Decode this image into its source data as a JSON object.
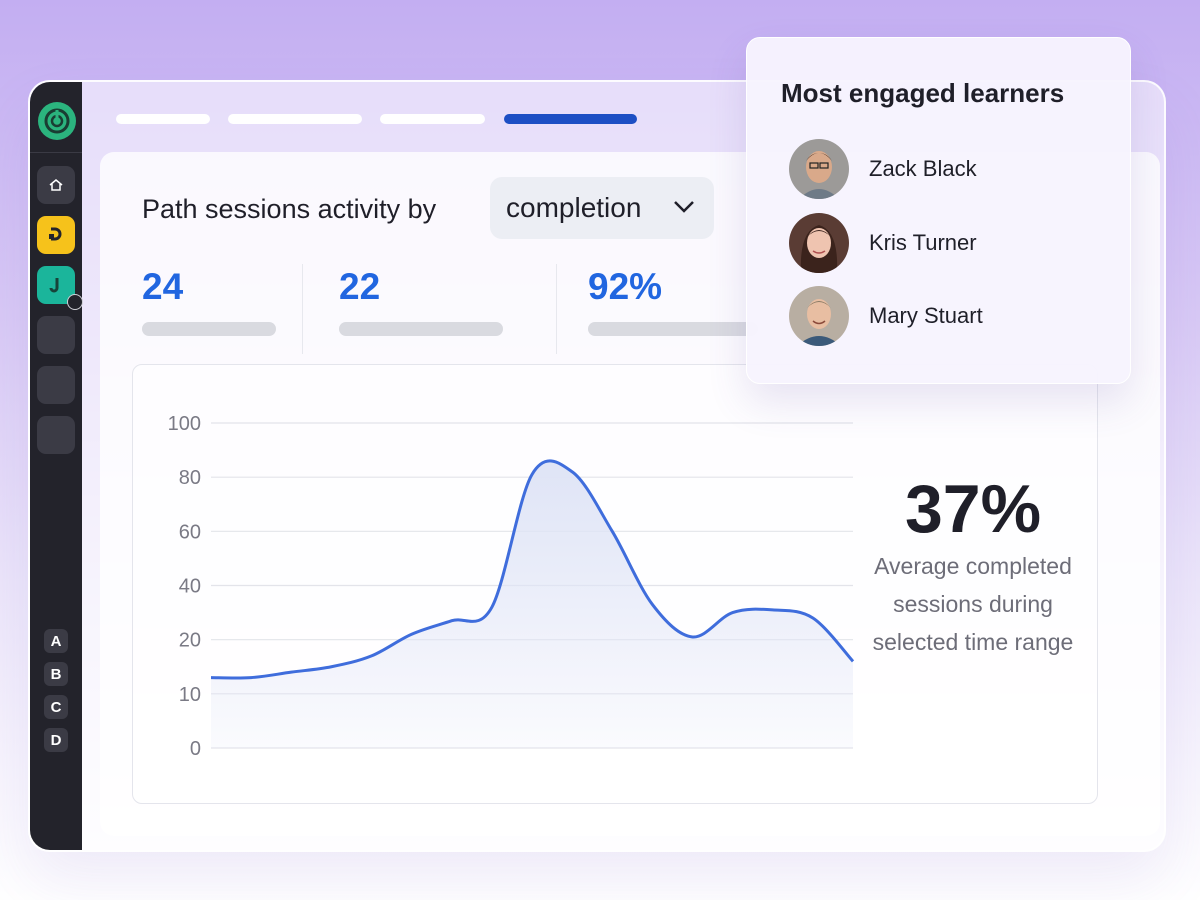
{
  "app": {
    "accent_color": "#1d4fc4",
    "brand_color": "#2bb47e"
  },
  "sidebar": {
    "logo_icon": "learning-circle-logo",
    "items": [
      {
        "icon": "home-icon"
      },
      {
        "icon": "path-icon",
        "color": "#f6c21b"
      },
      {
        "icon": "journey-icon",
        "color": "#1bb59b",
        "badge": "clock-icon"
      },
      {
        "icon": "placeholder"
      },
      {
        "icon": "placeholder"
      },
      {
        "icon": "placeholder"
      }
    ],
    "letters": [
      "A",
      "B",
      "C",
      "D"
    ]
  },
  "top_tabs": {
    "count": 4,
    "active_index": 3
  },
  "activity": {
    "title": "Path sessions activity by",
    "dropdown_value": "completion",
    "stats": [
      {
        "value": "24"
      },
      {
        "value": "22"
      },
      {
        "value": "92%"
      }
    ],
    "summary_value": "37%",
    "summary_caption": "Average completed sessions during selected time range"
  },
  "popup": {
    "title": "Most engaged learners",
    "learners": [
      {
        "name": "Zack Black"
      },
      {
        "name": "Kris Turner"
      },
      {
        "name": "Mary Stuart"
      }
    ]
  },
  "chart_data": {
    "type": "area",
    "ytick_labels": [
      "0",
      "10",
      "20",
      "40",
      "60",
      "80",
      "100"
    ],
    "x": [
      0,
      1,
      2,
      3,
      4,
      5,
      6,
      7,
      8,
      9,
      10,
      11,
      12,
      13,
      14,
      15,
      16
    ],
    "y": [
      13,
      13,
      14,
      15,
      17,
      22,
      27,
      32,
      81,
      82,
      60,
      33,
      21,
      30,
      31,
      28,
      16
    ],
    "grid": true,
    "line_color": "#3f6ddc",
    "fill_color": "#dfe4f6"
  }
}
